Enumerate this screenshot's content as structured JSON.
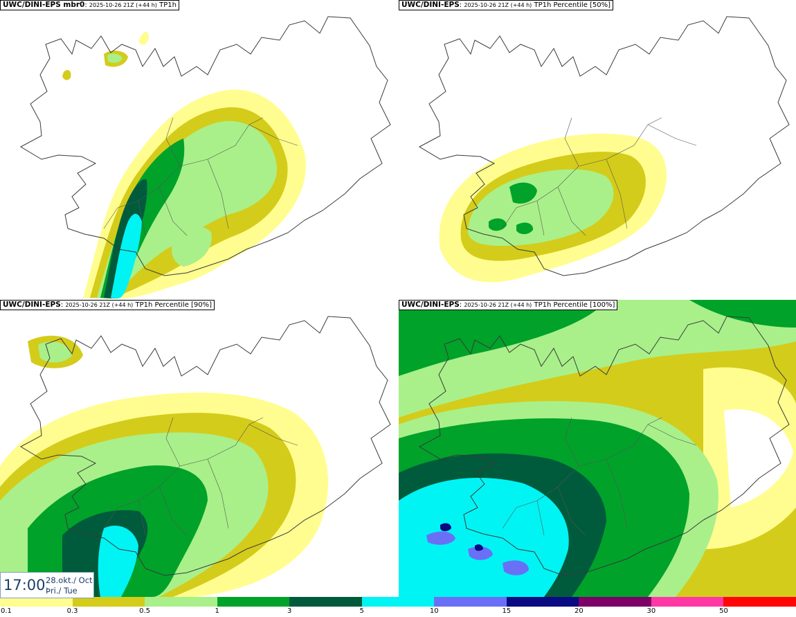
{
  "panels": [
    {
      "model": "UWC/DINI-EPS mbr0",
      "run": "2025-10-26 21Z (+44 h)",
      "product": "TP1h"
    },
    {
      "model": "UWC/DINI-EPS",
      "run": "2025-10-26 21Z (+44 h)",
      "product": "TP1h Percentile [50%]"
    },
    {
      "model": "UWC/DINI-EPS",
      "run": "2025-10-26 21Z (+44 h)",
      "product": "TP1h Percentile [90%]"
    },
    {
      "model": "UWC/DINI-EPS",
      "run": "2025-10-26 21Z (+44 h)",
      "product": "TP1h Percentile [100%]"
    }
  ],
  "valid_time": {
    "time": "17:00",
    "date": "28.okt./ Oct",
    "weekday": "Þri./ Tue"
  },
  "legend": {
    "colors": [
      "#fffd8f",
      "#d4cc1a",
      "#a9f08a",
      "#00a22a",
      "#005b3c",
      "#00f4f4",
      "#6a70f5",
      "#0a0a82",
      "#7d0066",
      "#ff38a6",
      "#ff0505"
    ],
    "labels": [
      "0.1",
      "0.3",
      "0.5",
      "1",
      "3",
      "5",
      "10",
      "15",
      "20",
      "30",
      "50"
    ]
  }
}
